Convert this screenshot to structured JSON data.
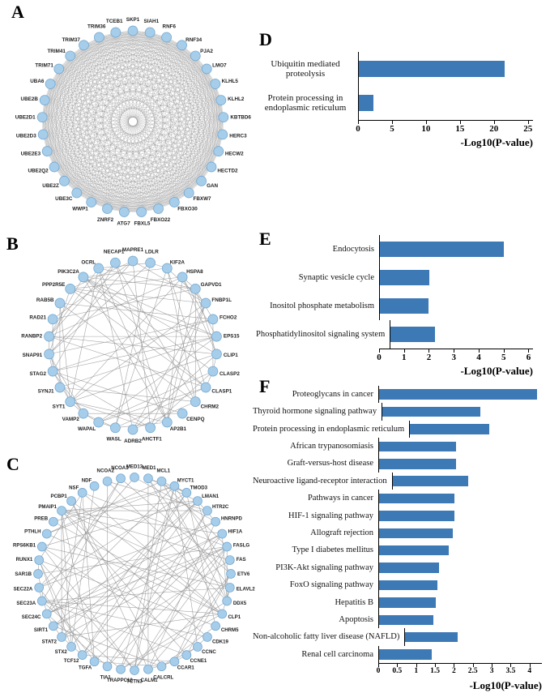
{
  "panels": {
    "a": {
      "letter": "A"
    },
    "b": {
      "letter": "B"
    },
    "c": {
      "letter": "C"
    },
    "d": {
      "letter": "D"
    },
    "e": {
      "letter": "E"
    },
    "f": {
      "letter": "F"
    }
  },
  "colors": {
    "bar": "#3d79b5",
    "node": "#a6cde9",
    "nodeStroke": "#6fa4cf",
    "edge": "#8f8f8f"
  },
  "networks": {
    "a": {
      "nodes": [
        "SKP1",
        "SIAH1",
        "RNF6",
        "RNF34",
        "PJA2",
        "LMO7",
        "KLHL5",
        "KLHL2",
        "KBTBD6",
        "HERC3",
        "HECW2",
        "HECTD2",
        "GAN",
        "FBXW7",
        "FBXO30",
        "FBXO22",
        "FBXL5",
        "ATG7",
        "ZNRF2",
        "WWP1",
        "UBE3C",
        "UBE2Z",
        "UBE2Q2",
        "UBE2E3",
        "UBE2D3",
        "UBE2D1",
        "UBE2B",
        "UBA6",
        "TRIM71",
        "TRIM41",
        "TRIM37",
        "TRIM36",
        "TCEB1"
      ]
    },
    "b": {
      "nodes": [
        "MAPRE1",
        "LDLR",
        "KIF2A",
        "HSPA8",
        "GAPVD1",
        "FNBP1L",
        "FCHO2",
        "EPS15",
        "CLIP1",
        "CLASP2",
        "CLASP1",
        "CHRM2",
        "CENPQ",
        "AP2B1",
        "AHCTF1",
        "ADRB2",
        "WASL",
        "WAPAL",
        "VAMP2",
        "SYT1",
        "SYNJ1",
        "STAG2",
        "SNAP91",
        "RANBP2",
        "RAD21",
        "RAB5B",
        "PPP2R5E",
        "PIK3C2A",
        "OCRL",
        "NECAP1"
      ]
    },
    "c": {
      "nodes": [
        "MED13",
        "MED1",
        "MCL1",
        "MYCT1",
        "TMOD3",
        "LMAN1",
        "HTR2C",
        "HNRNPD",
        "HIF1A",
        "FASLG",
        "FAS",
        "ETV6",
        "ELAVL2",
        "DDX5",
        "CLP1",
        "CHRM5",
        "CDK19",
        "CCNC",
        "CCNE1",
        "CCAR1",
        "CALCRL",
        "CALM1",
        "TCTN3",
        "TRAPPC10",
        "TIA1",
        "TGFA",
        "TCF12",
        "STX2",
        "STAT2",
        "SIRT1",
        "SEC24C",
        "SEC23A",
        "SEC22A",
        "SAR1B",
        "RUNX1",
        "RPS6KB1",
        "PTHLH",
        "PREB",
        "PMAIP1",
        "PCBP1",
        "NSF",
        "NDF",
        "NCOA2",
        "NCOA1"
      ]
    }
  },
  "chart_data": [
    {
      "panel": "D",
      "type": "bar",
      "orientation": "horizontal",
      "categories": [
        "Ubiquitin mediated proteolysis",
        "Protein processing in endoplasmic reticulum"
      ],
      "values": [
        21.5,
        2.1
      ],
      "xlabel": "-Log10(P-value)",
      "ylabel": "",
      "xticks": [
        "0",
        "5",
        "10",
        "15",
        "20",
        "25"
      ],
      "xlim": [
        0,
        25
      ],
      "grid": false,
      "legend": false
    },
    {
      "panel": "E",
      "type": "bar",
      "orientation": "horizontal",
      "categories": [
        "Endocytosis",
        "Synaptic vesicle cycle",
        "Inositol phosphate metabolism",
        "Phosphatidylinositol signaling system"
      ],
      "values": [
        5.0,
        2.0,
        1.95,
        1.8
      ],
      "xlabel": "-Log10(P-value)",
      "ylabel": "",
      "xticks": [
        "0",
        "1",
        "2",
        "3",
        "4",
        "5",
        "6"
      ],
      "xlim": [
        0,
        6
      ],
      "grid": false,
      "legend": false
    },
    {
      "panel": "F",
      "type": "bar",
      "orientation": "horizontal",
      "categories": [
        "Proteoglycans in cancer",
        "Thyroid hormone signaling pathway",
        "Protein processing in endoplasmic reticulum",
        "African trypanosomiasis",
        "Graft-versus-host disease",
        "Neuroactive ligand-receptor interaction",
        "Pathways in cancer",
        "HIF-1 signaling pathway",
        "Allograft rejection",
        "Type I diabetes mellitus",
        "PI3K-Akt signaling pathway",
        "FoxO signaling pathway",
        "Hepatitis B",
        "Apoptosis",
        "Non-alcoholic fatty liver disease (NAFLD)",
        "Renal cell carcinoma"
      ],
      "values": [
        4.2,
        2.6,
        2.1,
        2.05,
        2.05,
        2.0,
        2.0,
        2.0,
        1.95,
        1.85,
        1.6,
        1.55,
        1.5,
        1.45,
        1.4,
        1.4
      ],
      "xlabel": "-Log10(P-value)",
      "ylabel": "",
      "xticks": [
        "0",
        "0.5",
        "1",
        "1.5",
        "2",
        "2.5",
        "3",
        "3.5",
        "4"
      ],
      "xlim": [
        0,
        4
      ],
      "grid": false,
      "legend": false
    }
  ]
}
